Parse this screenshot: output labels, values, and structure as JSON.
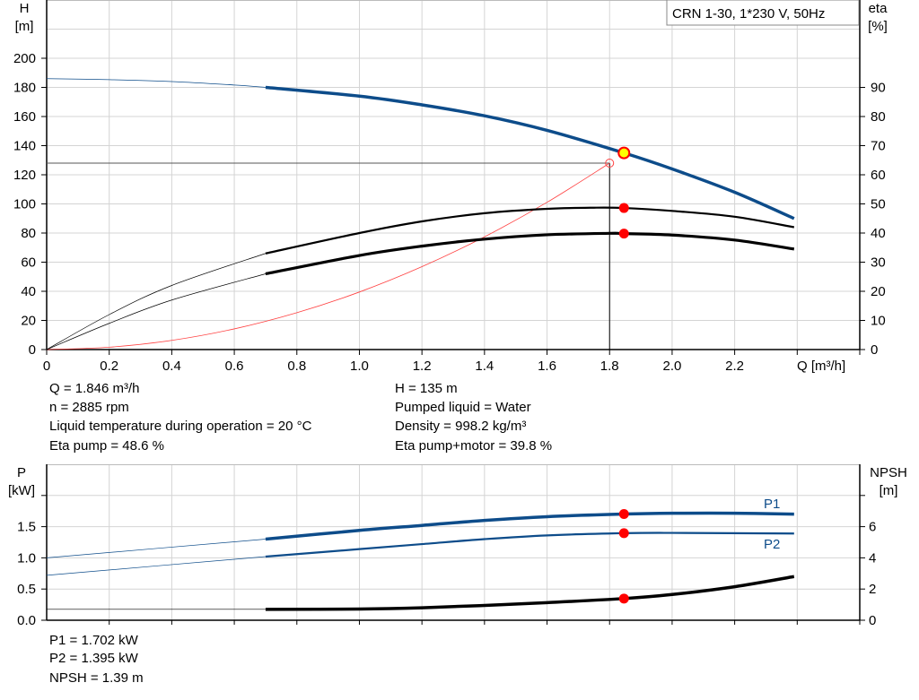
{
  "chart_data": [
    {
      "type": "line",
      "title_box": "CRN 1-30, 1*230 V, 50Hz",
      "xlabel": "Q [m³/h]",
      "ylabel_left": [
        "H",
        "[m]"
      ],
      "ylabel_right": [
        "eta",
        "[%]"
      ],
      "xlim": [
        0,
        2.6
      ],
      "ylim_left": [
        0,
        240
      ],
      "ylim_right": [
        0,
        120
      ],
      "grid": true,
      "x_ticks": [
        "0",
        "0.2",
        "0.4",
        "0.6",
        "0.8",
        "1.0",
        "1.2",
        "1.4",
        "1.6",
        "1.8",
        "2.0",
        "2.2"
      ],
      "y_ticks_left": [
        "0",
        "20",
        "40",
        "60",
        "80",
        "100",
        "120",
        "140",
        "160",
        "180",
        "200"
      ],
      "y_ticks_right": [
        "0",
        "10",
        "20",
        "30",
        "40",
        "50",
        "60",
        "70",
        "80",
        "90"
      ],
      "colors": {
        "head": "#0d4c8a",
        "eta": "#000000",
        "system": "#ff4040",
        "duty_point": "#ffff00",
        "marker": "#ff0000"
      },
      "series": [
        {
          "id": "H",
          "axis": "left",
          "thin_until": 0.7,
          "points": [
            [
              0,
              186
            ],
            [
              0.2,
              185.3
            ],
            [
              0.4,
              184
            ],
            [
              0.6,
              181.6
            ],
            [
              0.7,
              180
            ],
            [
              1.0,
              174
            ],
            [
              1.2,
              168
            ],
            [
              1.4,
              160.5
            ],
            [
              1.6,
              150.5
            ],
            [
              1.846,
              135
            ],
            [
              2.0,
              124
            ],
            [
              2.2,
              108
            ],
            [
              2.39,
              90
            ]
          ]
        },
        {
          "id": "eta_pump",
          "axis": "right",
          "thin_until": 0.7,
          "points": [
            [
              0,
              0
            ],
            [
              0.2,
              12
            ],
            [
              0.4,
              22
            ],
            [
              0.7,
              33
            ],
            [
              1.0,
              40
            ],
            [
              1.2,
              44
            ],
            [
              1.4,
              46.8
            ],
            [
              1.6,
              48.3
            ],
            [
              1.75,
              48.7
            ],
            [
              1.846,
              48.6
            ],
            [
              2.0,
              47.6
            ],
            [
              2.2,
              45.6
            ],
            [
              2.39,
              42
            ]
          ]
        },
        {
          "id": "eta_pump_motor",
          "axis": "right",
          "thin_until": 0.7,
          "points": [
            [
              0,
              0
            ],
            [
              0.2,
              9
            ],
            [
              0.4,
              17
            ],
            [
              0.7,
              26
            ],
            [
              1.0,
              32.3
            ],
            [
              1.2,
              35.5
            ],
            [
              1.4,
              37.9
            ],
            [
              1.6,
              39.4
            ],
            [
              1.8,
              39.9
            ],
            [
              1.846,
              39.8
            ],
            [
              2.0,
              39.3
            ],
            [
              2.2,
              37.6
            ],
            [
              2.39,
              34.5
            ]
          ]
        },
        {
          "id": "system",
          "axis": "left",
          "points": [
            [
              0,
              0
            ],
            [
              0.2,
              1.6
            ],
            [
              0.4,
              6.3
            ],
            [
              0.6,
              14.2
            ],
            [
              0.8,
              25.3
            ],
            [
              1.0,
              39.5
            ],
            [
              1.2,
              56.9
            ],
            [
              1.4,
              77.4
            ],
            [
              1.6,
              101.1
            ],
            [
              1.8,
              128
            ]
          ]
        }
      ],
      "duty_point": {
        "Q": 1.846,
        "H": 135
      },
      "reference_point": {
        "Q": 1.8,
        "H": 128
      },
      "markers": [
        {
          "series": "eta_pump",
          "Q": 1.846,
          "value": 48.6
        },
        {
          "series": "eta_pump_motor",
          "Q": 1.846,
          "value": 39.8
        }
      ]
    },
    {
      "type": "line",
      "ylabel_left": [
        "P",
        "[kW]"
      ],
      "ylabel_right": [
        "NPSH",
        "[m]"
      ],
      "xlim": [
        0,
        2.6
      ],
      "ylim_left": [
        0,
        2.5
      ],
      "ylim_right": [
        0,
        10
      ],
      "grid": true,
      "y_ticks_left": [
        "0.0",
        "0.5",
        "1.0",
        "1.5"
      ],
      "y_ticks_right": [
        "0",
        "2",
        "4",
        "6"
      ],
      "series": [
        {
          "id": "P1",
          "name": "P1",
          "axis": "left",
          "thin_until": 0.7,
          "points": [
            [
              0,
              1.0
            ],
            [
              0.7,
              1.3
            ],
            [
              1.0,
              1.44
            ],
            [
              1.2,
              1.52
            ],
            [
              1.4,
              1.6
            ],
            [
              1.6,
              1.66
            ],
            [
              1.846,
              1.702
            ],
            [
              2.0,
              1.715
            ],
            [
              2.2,
              1.715
            ],
            [
              2.39,
              1.7
            ]
          ]
        },
        {
          "id": "P2",
          "name": "P2",
          "axis": "left",
          "thin_until": 0.7,
          "points": [
            [
              0,
              0.72
            ],
            [
              0.7,
              1.02
            ],
            [
              1.0,
              1.14
            ],
            [
              1.2,
              1.22
            ],
            [
              1.4,
              1.3
            ],
            [
              1.6,
              1.36
            ],
            [
              1.846,
              1.395
            ],
            [
              2.0,
              1.4
            ],
            [
              2.39,
              1.39
            ]
          ]
        },
        {
          "id": "NPSH",
          "axis": "right",
          "thin_until": 0.7,
          "points": [
            [
              0,
              0.7
            ],
            [
              0.7,
              0.7
            ],
            [
              1.0,
              0.72
            ],
            [
              1.2,
              0.8
            ],
            [
              1.4,
              0.95
            ],
            [
              1.6,
              1.13
            ],
            [
              1.846,
              1.39
            ],
            [
              2.0,
              1.65
            ],
            [
              2.2,
              2.15
            ],
            [
              2.39,
              2.8
            ]
          ]
        }
      ],
      "markers": [
        {
          "series": "P1",
          "Q": 1.846,
          "value": 1.702
        },
        {
          "series": "P2",
          "Q": 1.846,
          "value": 1.395
        },
        {
          "series": "NPSH",
          "Q": 1.846,
          "value": 1.39
        }
      ]
    }
  ],
  "info_top": {
    "left": [
      "Q = 1.846 m³/h",
      "n = 2885 rpm",
      "Liquid temperature during operation = 20 °C",
      "Eta pump = 48.6 %"
    ],
    "right": [
      "H = 135 m",
      "Pumped liquid = Water",
      "Density = 998.2 kg/m³",
      "Eta pump+motor = 39.8 %"
    ]
  },
  "info_bottom": [
    "P1 = 1.702 kW",
    "P2 = 1.395 kW",
    "NPSH = 1.39 m"
  ]
}
